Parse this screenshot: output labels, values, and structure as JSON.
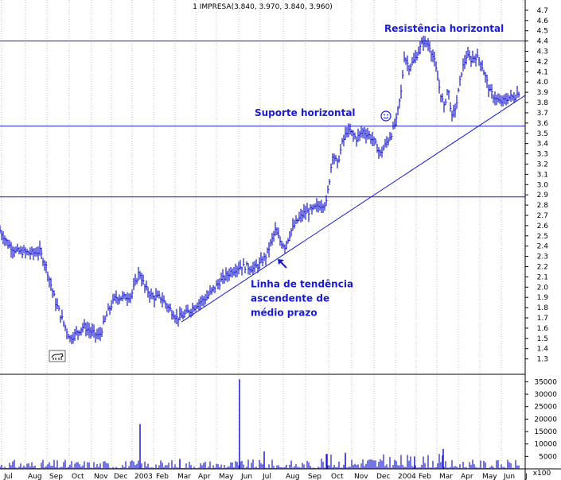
{
  "chart_data": {
    "type": "bar",
    "title": "1 IMPRESA(3.840, 3.970, 3.840, 3.960)",
    "xlabel": "",
    "ylabel": "",
    "price_axis": {
      "ylim": [
        1.15,
        4.8
      ],
      "ticks": [
        "1.3",
        "1.4",
        "1.5",
        "1.6",
        "1.7",
        "1.8",
        "1.9",
        "2.0",
        "2.1",
        "2.2",
        "2.3",
        "2.4",
        "2.5",
        "2.6",
        "2.7",
        "2.8",
        "2.9",
        "3.0",
        "3.1",
        "3.2",
        "3.3",
        "3.4",
        "3.5",
        "3.6",
        "3.7",
        "3.8",
        "3.9",
        "4.0",
        "4.1",
        "4.2",
        "4.3",
        "4.4",
        "4.5",
        "4.6",
        "4.7"
      ]
    },
    "volume_axis": {
      "ylim": [
        0,
        38000
      ],
      "ticks": [
        "5000",
        "10000",
        "15000",
        "20000",
        "25000",
        "30000",
        "35000"
      ],
      "unit": "x100"
    },
    "x_axis": {
      "range": [
        0,
        660
      ],
      "labels": [
        {
          "text": "Jul",
          "x": 2
        },
        {
          "text": "Aug",
          "x": 32
        },
        {
          "text": "Sep",
          "x": 59
        },
        {
          "text": "Oct",
          "x": 87
        },
        {
          "text": "Nov",
          "x": 115
        },
        {
          "text": "Dec",
          "x": 140
        },
        {
          "text": "2003",
          "x": 166
        },
        {
          "text": "Feb",
          "x": 193
        },
        {
          "text": "Mar",
          "x": 220
        },
        {
          "text": "Apr",
          "x": 246
        },
        {
          "text": "May",
          "x": 272
        },
        {
          "text": "Jun",
          "x": 300
        },
        {
          "text": "Jul",
          "x": 327
        },
        {
          "text": "Aug",
          "x": 356
        },
        {
          "text": "Sep",
          "x": 384
        },
        {
          "text": "Oct",
          "x": 413
        },
        {
          "text": "Nov",
          "x": 442
        },
        {
          "text": "Dec",
          "x": 470
        },
        {
          "text": "2004",
          "x": 497
        },
        {
          "text": "Feb",
          "x": 523
        },
        {
          "text": "Mar",
          "x": 549
        },
        {
          "text": "Apr",
          "x": 576
        },
        {
          "text": "May",
          "x": 603
        },
        {
          "text": "Jun",
          "x": 630
        },
        {
          "text": "J",
          "x": 657
        }
      ]
    },
    "price_keypoints": [
      [
        0,
        2.55
      ],
      [
        10,
        2.42
      ],
      [
        20,
        2.35
      ],
      [
        30,
        2.34
      ],
      [
        40,
        2.33
      ],
      [
        50,
        2.35
      ],
      [
        58,
        2.2
      ],
      [
        63,
        2.05
      ],
      [
        70,
        1.85
      ],
      [
        80,
        1.65
      ],
      [
        88,
        1.5
      ],
      [
        96,
        1.55
      ],
      [
        105,
        1.62
      ],
      [
        115,
        1.56
      ],
      [
        125,
        1.52
      ],
      [
        135,
        1.75
      ],
      [
        145,
        1.9
      ],
      [
        155,
        1.9
      ],
      [
        165,
        1.92
      ],
      [
        175,
        2.15
      ],
      [
        182,
        2.0
      ],
      [
        192,
        1.9
      ],
      [
        202,
        1.9
      ],
      [
        212,
        1.8
      ],
      [
        222,
        1.7
      ],
      [
        230,
        1.72
      ],
      [
        240,
        1.78
      ],
      [
        250,
        1.85
      ],
      [
        260,
        1.9
      ],
      [
        270,
        2.0
      ],
      [
        280,
        2.08
      ],
      [
        290,
        2.15
      ],
      [
        300,
        2.2
      ],
      [
        310,
        2.2
      ],
      [
        318,
        2.18
      ],
      [
        326,
        2.22
      ],
      [
        334,
        2.3
      ],
      [
        340,
        2.42
      ],
      [
        346,
        2.55
      ],
      [
        352,
        2.45
      ],
      [
        358,
        2.4
      ],
      [
        366,
        2.55
      ],
      [
        374,
        2.65
      ],
      [
        382,
        2.72
      ],
      [
        392,
        2.75
      ],
      [
        402,
        2.8
      ],
      [
        410,
        2.82
      ],
      [
        414,
        3.05
      ],
      [
        418,
        3.3
      ],
      [
        424,
        3.2
      ],
      [
        430,
        3.4
      ],
      [
        436,
        3.52
      ],
      [
        442,
        3.5
      ],
      [
        448,
        3.45
      ],
      [
        456,
        3.52
      ],
      [
        464,
        3.48
      ],
      [
        470,
        3.42
      ],
      [
        478,
        3.3
      ],
      [
        484,
        3.38
      ],
      [
        492,
        3.5
      ],
      [
        498,
        3.62
      ],
      [
        504,
        3.9
      ],
      [
        508,
        4.25
      ],
      [
        514,
        4.15
      ],
      [
        520,
        4.2
      ],
      [
        526,
        4.3
      ],
      [
        532,
        4.4
      ],
      [
        540,
        4.35
      ],
      [
        546,
        4.2
      ],
      [
        552,
        3.95
      ],
      [
        558,
        3.75
      ],
      [
        563,
        3.95
      ],
      [
        568,
        3.65
      ],
      [
        574,
        3.8
      ],
      [
        580,
        4.1
      ],
      [
        586,
        4.25
      ],
      [
        592,
        4.22
      ],
      [
        598,
        4.25
      ],
      [
        604,
        4.2
      ],
      [
        610,
        4.05
      ],
      [
        616,
        3.9
      ],
      [
        622,
        3.85
      ],
      [
        628,
        3.8
      ],
      [
        634,
        3.82
      ],
      [
        640,
        3.85
      ],
      [
        646,
        3.85
      ],
      [
        652,
        3.9
      ]
    ],
    "horizontal_lines": [
      4.4,
      3.57,
      2.88
    ],
    "trend_line": {
      "x1": 228,
      "y1": 1.66,
      "x2": 660,
      "y2": 3.87
    },
    "volume_spikes": [
      {
        "x": 176,
        "v": 18000
      },
      {
        "x": 301,
        "v": 36000
      },
      {
        "x": 226,
        "v": 4000
      },
      {
        "x": 332,
        "v": 7000
      },
      {
        "x": 411,
        "v": 6000
      },
      {
        "x": 434,
        "v": 6500
      },
      {
        "x": 521,
        "v": 5000
      },
      {
        "x": 557,
        "v": 8000
      }
    ],
    "annotations": [
      {
        "text": "Resistência horizontal",
        "x": 483,
        "y": 4.49
      },
      {
        "text": "Suporte horizontal",
        "x": 320,
        "y": 3.67
      },
      {
        "text": "Linha de tendência",
        "x": 315,
        "y": 2.0
      },
      {
        "text": "ascendente de",
        "x": 315,
        "y": 1.86
      },
      {
        "text": "médio prazo",
        "x": 315,
        "y": 1.72
      }
    ],
    "grid": "vertical-dotted",
    "colors": {
      "price": "#1a1ad0",
      "lines": "#1a1ad0",
      "volume": "#1a1ad0",
      "annotation": "#1a1ad0",
      "grid": "#a0a0a0"
    }
  }
}
